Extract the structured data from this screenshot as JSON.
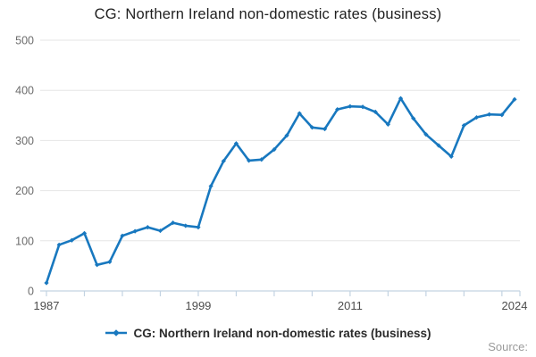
{
  "header": {
    "title": "CG: Northern Ireland non-domestic rates (business)"
  },
  "legend": {
    "label": "CG: Northern Ireland non-domestic rates (business)"
  },
  "source": {
    "label": "Source:"
  },
  "colors": {
    "line": "#1878bf",
    "grid": "#e6e6e6",
    "axis": "#c3d3e2",
    "y_label": "#6b6b6b",
    "x_label": "#4d4d4d",
    "title": "#1f1f1f",
    "legend_text": "#2b2b2b",
    "source_text": "#9a9a9a"
  },
  "chart_data": {
    "type": "line",
    "title": "CG: Northern Ireland non-domestic rates (business)",
    "xlabel": "",
    "ylabel": "",
    "ylim": [
      0,
      500
    ],
    "yticks": [
      0,
      100,
      200,
      300,
      400,
      500
    ],
    "xlim": [
      1987,
      2024
    ],
    "xticks_labeled": [
      1987,
      1999,
      2011,
      2024
    ],
    "xtick_minor_interval": 3,
    "grid": true,
    "legend_position": "bottom",
    "marker": "diamond",
    "series": [
      {
        "name": "CG: Northern Ireland non-domestic rates (business)",
        "x": [
          1987,
          1988,
          1989,
          1990,
          1991,
          1992,
          1993,
          1994,
          1995,
          1996,
          1997,
          1998,
          1999,
          2000,
          2001,
          2002,
          2003,
          2004,
          2005,
          2006,
          2007,
          2008,
          2009,
          2010,
          2011,
          2012,
          2013,
          2014,
          2015,
          2016,
          2017,
          2018,
          2019,
          2020,
          2021,
          2022,
          2023,
          2024
        ],
        "values": [
          16,
          92,
          101,
          115,
          52,
          58,
          110,
          119,
          127,
          120,
          136,
          130,
          127,
          209,
          259,
          294,
          260,
          262,
          282,
          310,
          354,
          326,
          323,
          362,
          368,
          367,
          357,
          332,
          384,
          344,
          312,
          290,
          268,
          330,
          346,
          352,
          351,
          382
        ]
      }
    ]
  }
}
